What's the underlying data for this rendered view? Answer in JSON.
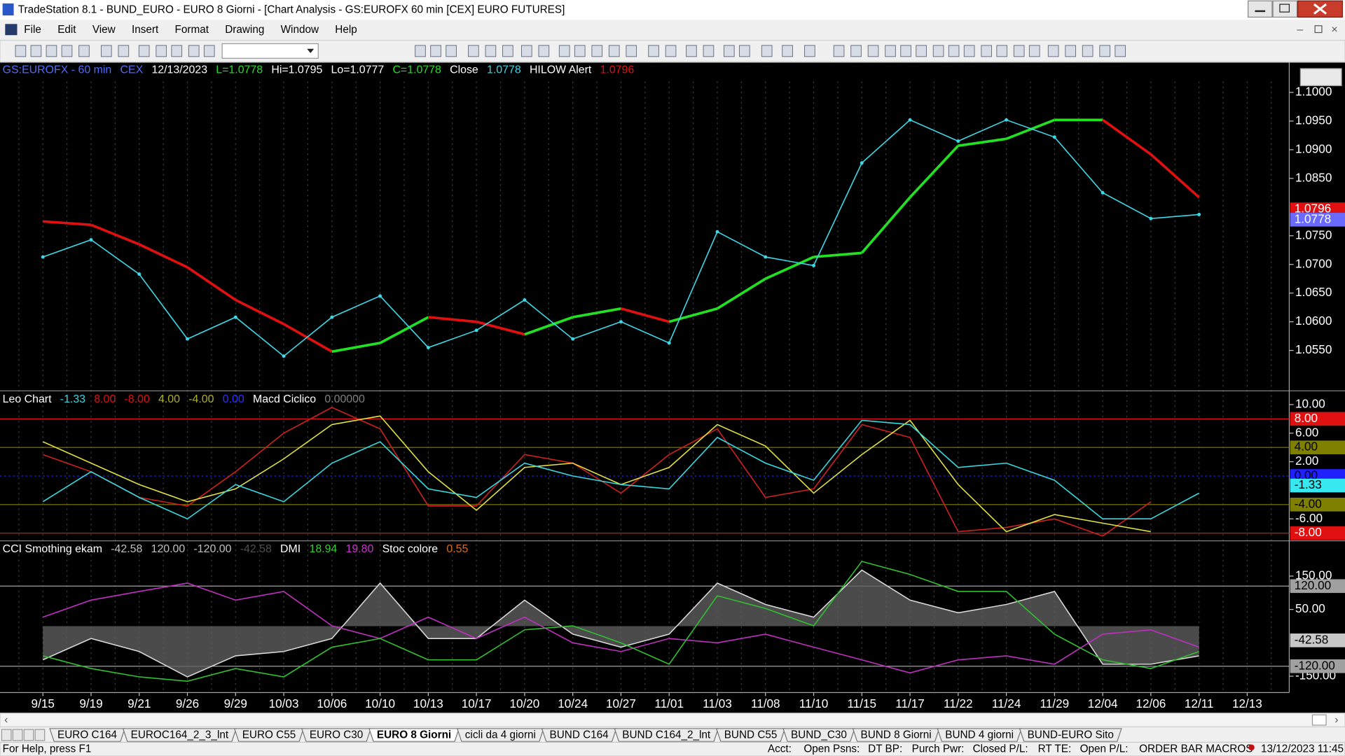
{
  "window": {
    "title": "TradeStation 8.1 - BUND_EURO - EURO 8 Giorni - [Chart Analysis - GS:EUROFX  60 min  [CEX] EURO FUTURES]"
  },
  "menu": [
    "File",
    "Edit",
    "View",
    "Insert",
    "Format",
    "Drawing",
    "Window",
    "Help"
  ],
  "tabs": [
    "EURO C164",
    "EUROC164_2_3_lnt",
    "EURO C55",
    "EURO C30",
    "EURO 8 Giorni",
    "cicli da 4 giorni",
    "BUND C164",
    "BUND C164_2_lnt",
    "BUND C55",
    "BUND_C30",
    "BUND 8 Giorni",
    "BUND 4 giorni",
    "BUND-EURO Sito"
  ],
  "active_tab": 4,
  "status": {
    "help": "For Help, press F1",
    "fields": [
      "Acct:",
      "Open Psns:",
      "DT BP:",
      "Purch Pwr:",
      "Closed P/L:",
      "RT TE:",
      "Open P/L:"
    ],
    "macros": "ORDER BAR MACROS",
    "datetime": "13/12/2023 11:45"
  },
  "chart_data": [
    {
      "type": "line",
      "header": [
        {
          "text": "GS:EUROFX - 60 min",
          "color": "#4f6bff"
        },
        {
          "text": "CEX",
          "color": "#4f6bff"
        },
        {
          "text": "12/13/2023",
          "color": "#ffffff"
        },
        {
          "text": "L=1.0778",
          "color": "#20e020"
        },
        {
          "text": "Hi=1.0795",
          "color": "#ffffff"
        },
        {
          "text": "Lo=1.0777",
          "color": "#ffffff"
        },
        {
          "text": "C=1.0778",
          "color": "#20e020"
        },
        {
          "text": "Close",
          "color": "#ffffff"
        },
        {
          "text": "1.0778",
          "color": "#38d8e8"
        },
        {
          "text": "HILOW Alert",
          "color": "#ffffff"
        },
        {
          "text": "1.0796",
          "color": "#e01010"
        }
      ],
      "ylim": [
        1.0481,
        1.1052
      ],
      "yticks": [
        {
          "value": 1.1,
          "label": "1.1000"
        },
        {
          "value": 1.095,
          "label": "1.0950"
        },
        {
          "value": 1.09,
          "label": "1.0900"
        },
        {
          "value": 1.085,
          "label": "1.0850"
        },
        {
          "value": 1.075,
          "label": "1.0750"
        },
        {
          "value": 1.07,
          "label": "1.0700"
        },
        {
          "value": 1.065,
          "label": "1.0650"
        },
        {
          "value": 1.06,
          "label": "1.0600"
        },
        {
          "value": 1.055,
          "label": "1.0550"
        }
      ],
      "markers": [
        {
          "value": 1.0796,
          "label": "1.0796",
          "color": "#e01010",
          "text_color": "#ffffff"
        },
        {
          "value": 1.0778,
          "label": "1.0778",
          "color": "#6a6aff",
          "text_color": "#ffffff"
        }
      ],
      "series": [
        {
          "rising_color": "#22e022",
          "falling_color": "#e01010",
          "values": [
            1.0775,
            1.0769,
            1.0735,
            1.0695,
            1.0638,
            1.0596,
            1.0548,
            1.0563,
            1.0608,
            1.06,
            1.0578,
            1.0608,
            1.0623,
            1.06,
            1.0623,
            1.0675,
            1.0713,
            1.072,
            1.0817,
            1.0907,
            1.0919,
            1.0952,
            1.0952,
            1.0892,
            1.0817,
            null
          ]
        },
        {
          "color": "#3fd8e8",
          "dots": true,
          "values": [
            1.0713,
            1.0743,
            1.0683,
            1.057,
            1.0608,
            1.054,
            1.0608,
            1.0645,
            1.0555,
            1.0585,
            1.0638,
            1.057,
            1.06,
            1.0563,
            1.0757,
            1.0713,
            1.0698,
            1.0877,
            1.0952,
            1.0915,
            1.0952,
            1.0922,
            1.0825,
            1.078,
            1.0787,
            null
          ]
        }
      ]
    },
    {
      "type": "line",
      "header": [
        {
          "text": "Leo Chart",
          "color": "#ffffff"
        },
        {
          "text": "-1.33",
          "color": "#38d8e8"
        },
        {
          "text": "8.00",
          "color": "#e01010"
        },
        {
          "text": "-8.00",
          "color": "#e01010"
        },
        {
          "text": "4.00",
          "color": "#b0b020"
        },
        {
          "text": "-4.00",
          "color": "#b0b020"
        },
        {
          "text": "0.00",
          "color": "#3030ff"
        },
        {
          "text": "Macd Ciclico",
          "color": "#ffffff"
        },
        {
          "text": "0.00000",
          "color": "#808080"
        }
      ],
      "ylim": [
        -8.96,
        11.8
      ],
      "yticks": [
        {
          "value": 10,
          "label": "10.00"
        },
        {
          "value": 6,
          "label": "6.00"
        },
        {
          "value": 2,
          "label": "2.00"
        },
        {
          "value": -6,
          "label": "-6.00"
        }
      ],
      "levels": [
        {
          "value": 8,
          "label": "8.00",
          "color": "#e01010",
          "text_color": "#ffffff"
        },
        {
          "value": 4,
          "label": "4.00",
          "color": "#808000",
          "text_color": "#000000"
        },
        {
          "value": 0,
          "label": "0.00",
          "color": "#2020ff",
          "text_color": "#000000",
          "dash": true
        },
        {
          "value": -4,
          "label": "-4.00",
          "color": "#808000",
          "text_color": "#000000"
        },
        {
          "value": -8,
          "label": "-8.00",
          "color": "#e01010",
          "text_color": "#ffffff"
        }
      ],
      "markers": [
        {
          "value": -1.33,
          "label": "-1.33",
          "color": "#38e8f0",
          "text_color": "#000000"
        }
      ],
      "series": [
        {
          "color": "#d02020",
          "values": [
            3.0,
            0.6,
            -3.0,
            -4.2,
            0.6,
            6.0,
            9.6,
            6.6,
            -4.2,
            -4.2,
            3.0,
            1.8,
            -2.4,
            3.0,
            6.6,
            -3.0,
            -1.8,
            7.2,
            5.4,
            -7.8,
            -7.2,
            -6.0,
            -8.4,
            -3.6,
            null,
            null
          ]
        },
        {
          "color": "#e0e040",
          "values": [
            4.8,
            1.8,
            -1.2,
            -3.6,
            -1.8,
            2.4,
            7.2,
            8.4,
            0.6,
            -4.8,
            1.2,
            1.8,
            -1.2,
            1.2,
            7.2,
            4.2,
            -2.4,
            3.0,
            7.8,
            -1.2,
            -7.8,
            -5.4,
            -6.6,
            -7.8,
            null,
            null
          ]
        },
        {
          "color": "#38d8e0",
          "values": [
            -3.6,
            0.6,
            -3.0,
            -6.0,
            -1.2,
            -3.6,
            1.8,
            4.8,
            -1.8,
            -3.0,
            1.8,
            0,
            -1.2,
            -1.8,
            5.4,
            1.8,
            -0.6,
            7.8,
            7.2,
            1.2,
            1.8,
            -0.6,
            -6.0,
            -6.0,
            -2.4,
            null
          ]
        }
      ]
    },
    {
      "type": "line",
      "header": [
        {
          "text": "CCI Smothing ekam",
          "color": "#ffffff"
        },
        {
          "text": "-42.58",
          "color": "#c0c0c0"
        },
        {
          "text": "120.00",
          "color": "#c0c0c0"
        },
        {
          "text": "-120.00",
          "color": "#c0c0c0"
        },
        {
          "text": "-42.58",
          "color": "#505050"
        },
        {
          "text": "DMI",
          "color": "#ffffff"
        },
        {
          "text": "18.94",
          "color": "#30d030"
        },
        {
          "text": "19.80",
          "color": "#d030d0"
        },
        {
          "text": "Stoc colore",
          "color": "#ffffff"
        },
        {
          "text": "0.55",
          "color": "#d07020"
        }
      ],
      "ylim": [
        -199,
        253
      ],
      "yticks": [
        {
          "value": 150,
          "label": "150.00"
        },
        {
          "value": 50,
          "label": "50.00"
        },
        {
          "value": -150,
          "label": "-150.00"
        }
      ],
      "levels": [
        {
          "value": 120,
          "label": "120.00",
          "color": "#a0a0a0",
          "text_color": "#000000"
        },
        {
          "value": -120,
          "label": "-120.00",
          "color": "#a0a0a0",
          "text_color": "#000000"
        }
      ],
      "markers": [
        {
          "value": -42.58,
          "label": "-42.58",
          "color": "#c8c8c8",
          "text_color": "#000000"
        }
      ],
      "categories": [
        "9/15",
        "9/19",
        "9/21",
        "9/26",
        "9/29",
        "10/03",
        "10/06",
        "10/10",
        "10/13",
        "10/17",
        "10/20",
        "10/24",
        "10/27",
        "11/01",
        "11/03",
        "11/08",
        "11/10",
        "11/15",
        "11/17",
        "11/22",
        "11/24",
        "11/29",
        "12/04",
        "12/06",
        "12/11",
        "12/13"
      ],
      "series": [
        {
          "color": "#d8d8d8",
          "area_color": "#5e5e5e",
          "values": [
            -101,
            -37,
            -76,
            -152,
            -89,
            -76,
            -37,
            129,
            -37,
            -37,
            78,
            -24,
            -63,
            -24,
            129,
            65,
            27,
            168,
            78,
            40,
            65,
            104,
            -114,
            -114,
            -89,
            null
          ]
        },
        {
          "color": "#c030c0",
          "values": [
            27,
            78,
            104,
            129,
            78,
            104,
            1,
            -37,
            27,
            -37,
            27,
            -50,
            -76,
            -37,
            -50,
            -24,
            -63,
            -101,
            -140,
            -101,
            -89,
            -114,
            -24,
            -11,
            -63,
            null
          ]
        },
        {
          "color": "#30c030",
          "values": [
            -89,
            -127,
            -152,
            -165,
            -127,
            -152,
            -63,
            -37,
            -101,
            -101,
            -11,
            1,
            -50,
            -114,
            91,
            53,
            1,
            194,
            155,
            104,
            104,
            -24,
            -101,
            -127,
            -76,
            null
          ]
        }
      ]
    }
  ]
}
